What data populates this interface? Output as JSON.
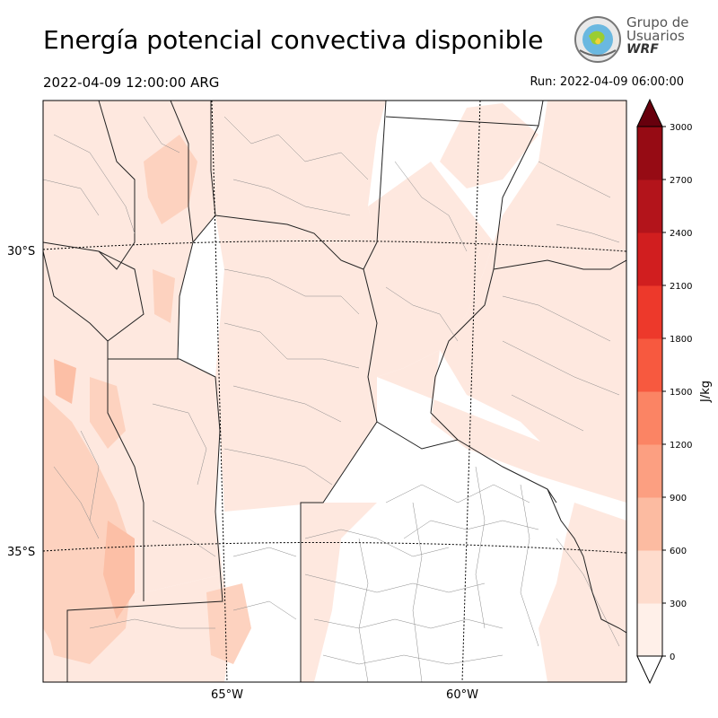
{
  "title": "Energía potencial convectiva disponible",
  "valid_time": "2022-04-09 12:00:00 ARG",
  "run_time": "Run: 2022-04-09 06:00:00",
  "logo": {
    "line1": "Grupo de",
    "line2": "Usuarios",
    "line3": "WRF"
  },
  "map": {
    "lat_labels": [
      "30°S",
      "35°S"
    ],
    "lon_labels": [
      "65°W",
      "60°W"
    ],
    "fill_colors": {
      "low": "#fee8df",
      "mid": "#fdd2bf",
      "high": "#fcbfa6"
    }
  },
  "colorbar": {
    "unit_label": "J/kg",
    "ticks": [
      "0",
      "300",
      "600",
      "900",
      "1200",
      "1500",
      "1800",
      "2100",
      "2400",
      "2700",
      "3000"
    ],
    "colors": [
      "#fff0e9",
      "#fedccd",
      "#fcbba1",
      "#fc9f81",
      "#fb8464",
      "#f7593f",
      "#ed392b",
      "#d11e1f",
      "#b3141b",
      "#960b14",
      "#770512"
    ],
    "over_color": "#67000d",
    "under_color": "#ffffff"
  }
}
